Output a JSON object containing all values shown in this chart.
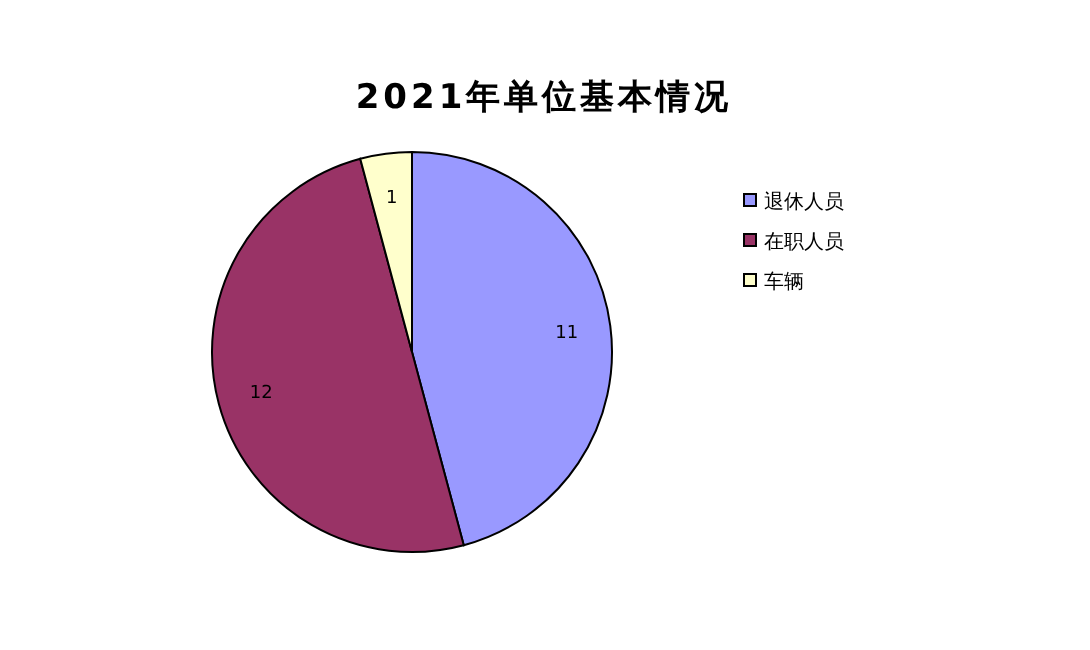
{
  "chart_data": {
    "type": "pie",
    "title": "2021年单位基本情况",
    "categories": [
      "退休人员",
      "在职人员",
      "车辆"
    ],
    "values": [
      11,
      12,
      1
    ],
    "colors": [
      "#9999ff",
      "#993366",
      "#ffffcc"
    ],
    "data_labels": true,
    "legend": "right"
  }
}
